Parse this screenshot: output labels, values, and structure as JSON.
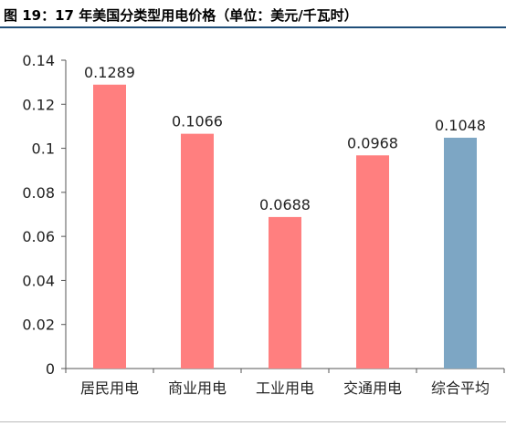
{
  "title": "图 19：17 年美国分类型用电价格（单位：美元/千瓦时）",
  "chart_data": {
    "type": "bar",
    "title": "",
    "xlabel": "",
    "ylabel": "",
    "ylim": [
      0,
      0.14
    ],
    "yticks": [
      0,
      0.02,
      0.04,
      0.06,
      0.08,
      0.1,
      0.12,
      0.14
    ],
    "ytick_labels": [
      "0",
      "0.02",
      "0.04",
      "0.06",
      "0.08",
      "0.1",
      "0.12",
      "0.14"
    ],
    "grid": false,
    "categories": [
      "居民用电",
      "商业用电",
      "工业用电",
      "交通用电",
      "综合平均"
    ],
    "values": [
      0.1289,
      0.1066,
      0.0688,
      0.0968,
      0.1048
    ],
    "value_labels": [
      "0.1289",
      "0.1066",
      "0.0688",
      "0.0968",
      "0.1048"
    ],
    "colors": [
      "#ff7f7f",
      "#ff7f7f",
      "#ff7f7f",
      "#ff7f7f",
      "#7da6c4"
    ]
  }
}
